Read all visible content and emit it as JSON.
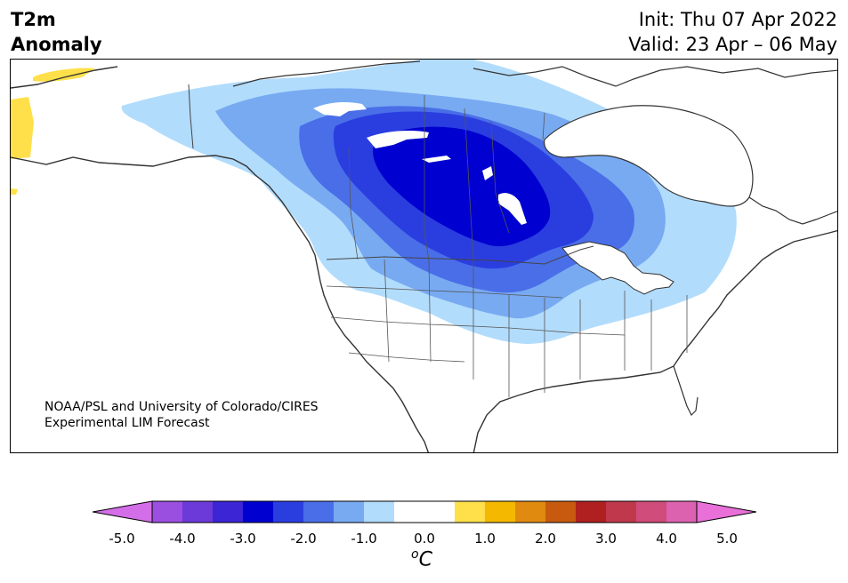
{
  "title": {
    "left_line1": "T2m",
    "left_line2": "Anomaly",
    "init": "Init: Thu 07 Apr 2022",
    "valid": "Valid: 23 Apr – 06 May"
  },
  "credit": {
    "line1": "NOAA/PSL and University of Colorado/CIRES",
    "line2": "Experimental LIM Forecast"
  },
  "colorbar": {
    "ticks": [
      "-5.0",
      "-4.0",
      "-3.0",
      "-2.0",
      "-1.0",
      "0.0",
      "1.0",
      "2.0",
      "3.0",
      "4.0",
      "5.0"
    ],
    "unit_base": "C",
    "unit_sup": "o",
    "colors": [
      "#d36ee8",
      "#9b4fe0",
      "#6b3ad8",
      "#3b25d4",
      "#0000d0",
      "#2a3ee0",
      "#4a6ee8",
      "#78aaf2",
      "#b2dcfc",
      "#ffffff",
      "#ffffff",
      "#ffe04a",
      "#f4b800",
      "#e08a10",
      "#c85a10",
      "#b02020",
      "#c0384c",
      "#d04c7a",
      "#dc62b0",
      "#e870d8"
    ]
  },
  "map": {
    "region": "North America",
    "anomaly_colors": {
      "cold_1": "#b2dcfc",
      "cold_2": "#78aaf2",
      "cold_3": "#4a6ee8",
      "cold_4": "#2a3ee0",
      "cold_5": "#0000d0",
      "warm_1": "#ffe04a",
      "land_line": "#333333"
    }
  }
}
